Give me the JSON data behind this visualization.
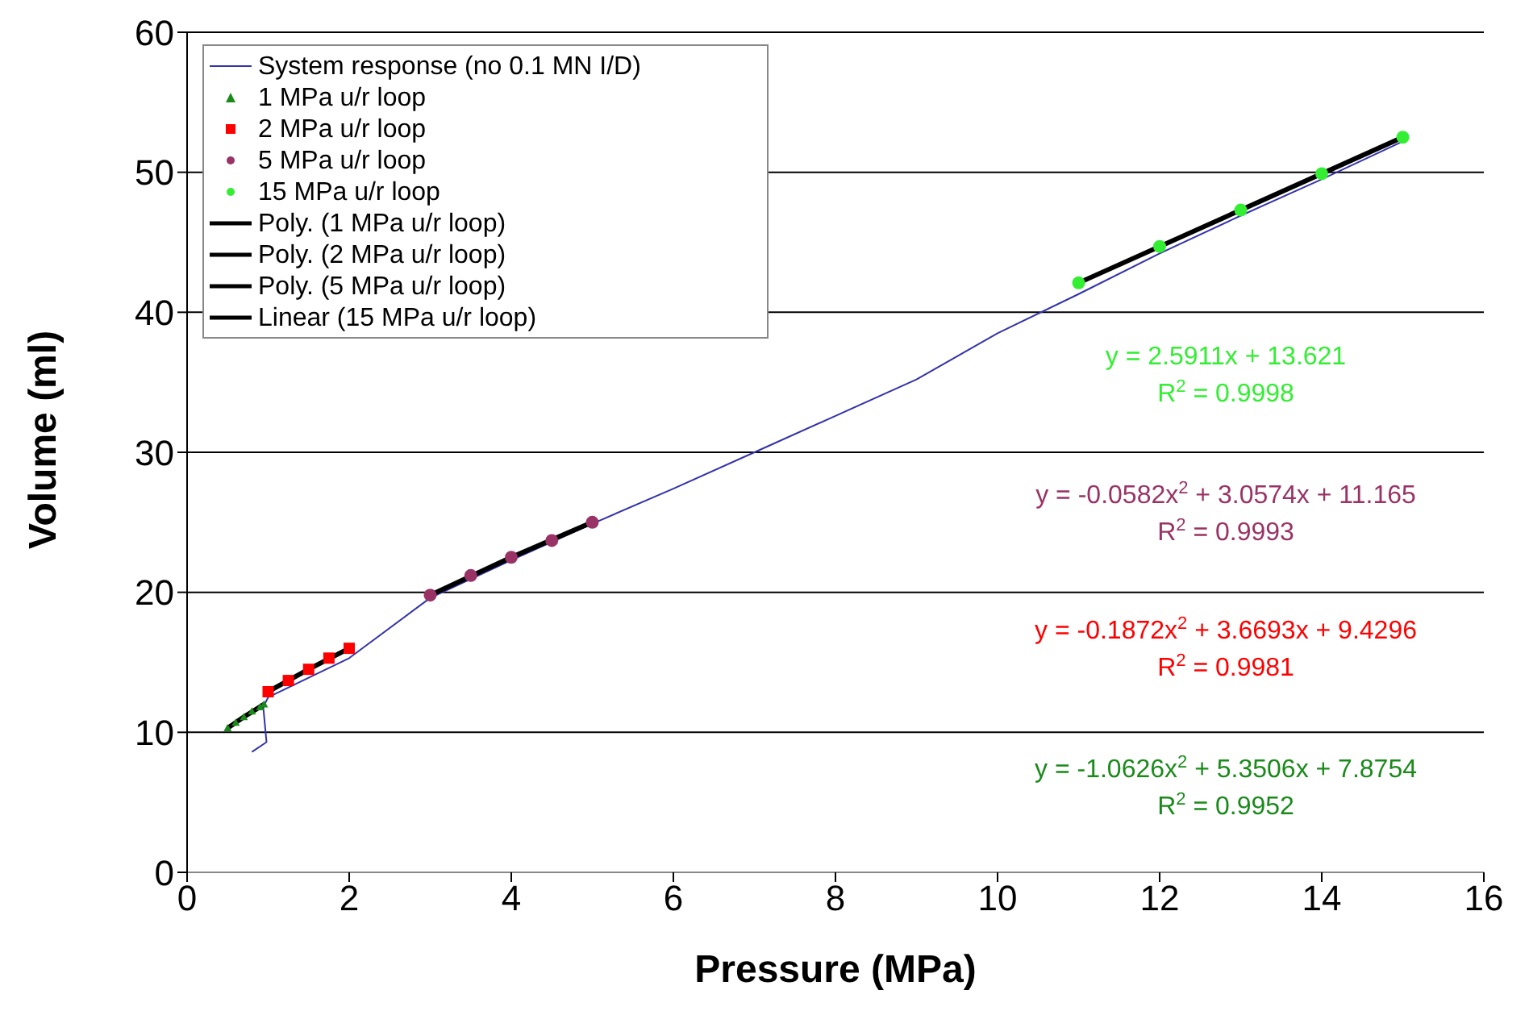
{
  "chart_data": {
    "type": "scatter",
    "xlabel": "Pressure (MPa)",
    "ylabel": "Volume (ml)",
    "xlim": [
      0,
      16
    ],
    "xticks": [
      0,
      2,
      4,
      6,
      8,
      10,
      12,
      14,
      16
    ],
    "ylim": [
      0,
      60
    ],
    "yticks": [
      0,
      10,
      20,
      30,
      40,
      50,
      60
    ],
    "grid": "y",
    "legend": "top left",
    "series": [
      {
        "name": "System response (no 0.1 MN I/D)",
        "type": "line",
        "marker": "none",
        "color": "#3333aa",
        "x": [
          0.8,
          0.98,
          0.94,
          1,
          2,
          3,
          4,
          5,
          6,
          7,
          8,
          9,
          10,
          11,
          12,
          13,
          14,
          15
        ],
        "values": [
          8.6,
          9.3,
          11.8,
          12.5,
          15.3,
          19.6,
          22.3,
          24.9,
          27.4,
          30,
          32.6,
          35.2,
          38.5,
          41.3,
          44.2,
          46.9,
          49.5,
          52.2
        ]
      },
      {
        "name": "1 MPa u/r loop",
        "marker": "triangle",
        "color": "#1a8a1a",
        "x": [
          0.5,
          0.6,
          0.7,
          0.8,
          0.9,
          0.95
        ],
        "values": [
          10.3,
          10.7,
          11.1,
          11.5,
          11.8,
          12
        ]
      },
      {
        "name": "2 MPa u/r loop",
        "marker": "square",
        "color": "#ff0000",
        "x": [
          1,
          1.25,
          1.5,
          1.75,
          2
        ],
        "values": [
          12.9,
          13.7,
          14.5,
          15.3,
          16
        ]
      },
      {
        "name": "5 MPa u/r loop",
        "marker": "circle",
        "color": "#993366",
        "x": [
          3,
          3.5,
          4,
          4.5,
          5
        ],
        "values": [
          19.8,
          21.2,
          22.5,
          23.7,
          25
        ]
      },
      {
        "name": "15 MPa u/r loop",
        "marker": "circle",
        "color": "#33ee33",
        "x": [
          11,
          12,
          13,
          14,
          15
        ],
        "values": [
          42.1,
          44.7,
          47.3,
          49.9,
          52.5
        ]
      },
      {
        "name": "Poly. (1 MPa u/r loop)",
        "type": "line",
        "marker": "none",
        "color": "#000000",
        "x": [
          0.5,
          0.7,
          0.95
        ],
        "values": [
          10.3,
          11.1,
          12
        ]
      },
      {
        "name": "Poly. (2 MPa u/r loop)",
        "type": "line",
        "marker": "none",
        "color": "#000000",
        "x": [
          1,
          1.5,
          2
        ],
        "values": [
          12.9,
          14.5,
          16
        ]
      },
      {
        "name": "Poly. (5 MPa u/r loop)",
        "type": "line",
        "marker": "none",
        "color": "#000000",
        "x": [
          3,
          4,
          5
        ],
        "values": [
          19.8,
          22.5,
          25
        ]
      },
      {
        "name": "Linear (15 MPa u/r loop)",
        "type": "line",
        "marker": "none",
        "color": "#000000",
        "x": [
          11,
          15
        ],
        "values": [
          42.1,
          52.5
        ]
      }
    ],
    "annotations": [
      "y = 2.5911x + 13.621",
      "R$^{2}$ = 0.9998",
      "y = -0.0582x$^{2}$ + 3.0574x + 11.165",
      "R$^{2}$ = 0.9993",
      "y = -0.1872x$^{2}$ + 3.6693x + 9.4296",
      "R$^{2}$ = 0.9981",
      "y = -1.0626x$^{2}$ + 5.3506x + 7.8754",
      "R$^{2}$ = 0.9952"
    ]
  }
}
